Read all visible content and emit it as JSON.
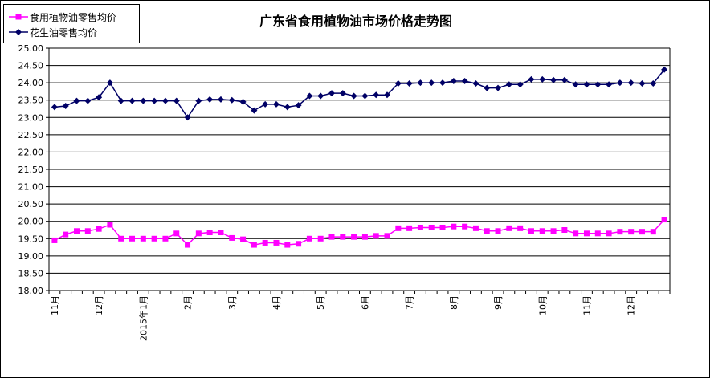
{
  "chart_data": {
    "type": "line",
    "title": "广东省食用植物油市场价格走势图",
    "xlabel": "",
    "ylabel": "",
    "ylim": [
      18.0,
      25.0
    ],
    "y_tick_step": 0.5,
    "y_ticks": [
      "18.00",
      "18.50",
      "19.00",
      "19.50",
      "20.00",
      "20.50",
      "21.00",
      "21.50",
      "22.00",
      "22.50",
      "23.00",
      "23.50",
      "24.00",
      "24.50",
      "25.00"
    ],
    "grid": true,
    "legend_position": "top-left",
    "x_labels": [
      {
        "index": 0,
        "label": "11月"
      },
      {
        "index": 4,
        "label": "12月"
      },
      {
        "index": 8,
        "label": "2015年1月"
      },
      {
        "index": 12,
        "label": "2月"
      },
      {
        "index": 16,
        "label": "3月"
      },
      {
        "index": 20,
        "label": "4月"
      },
      {
        "index": 24,
        "label": "5月"
      },
      {
        "index": 28,
        "label": "6月"
      },
      {
        "index": 32,
        "label": "7月"
      },
      {
        "index": 36,
        "label": "8月"
      },
      {
        "index": 40,
        "label": "9月"
      },
      {
        "index": 44,
        "label": "10月"
      },
      {
        "index": 48,
        "label": "11月"
      },
      {
        "index": 52,
        "label": "12月"
      }
    ],
    "series": [
      {
        "name": "食用植物油零售均价",
        "color": "#ff00ff",
        "marker": "square",
        "values": [
          19.45,
          19.62,
          19.72,
          19.72,
          19.78,
          19.9,
          19.5,
          19.5,
          19.5,
          19.5,
          19.5,
          19.65,
          19.32,
          19.65,
          19.68,
          19.68,
          19.52,
          19.48,
          19.32,
          19.38,
          19.38,
          19.32,
          19.35,
          19.5,
          19.5,
          19.55,
          19.55,
          19.55,
          19.55,
          19.58,
          19.58,
          19.8,
          19.8,
          19.82,
          19.82,
          19.82,
          19.85,
          19.85,
          19.8,
          19.72,
          19.72,
          19.8,
          19.8,
          19.72,
          19.72,
          19.72,
          19.75,
          19.65,
          19.65,
          19.65,
          19.65,
          19.7,
          19.7,
          19.7,
          19.7,
          20.05
        ]
      },
      {
        "name": "花生油零售均价",
        "color": "#000066",
        "marker": "diamond",
        "values": [
          23.3,
          23.33,
          23.48,
          23.48,
          23.58,
          24.0,
          23.48,
          23.48,
          23.48,
          23.48,
          23.48,
          23.48,
          23.0,
          23.48,
          23.52,
          23.52,
          23.5,
          23.45,
          23.2,
          23.38,
          23.38,
          23.3,
          23.35,
          23.62,
          23.62,
          23.7,
          23.7,
          23.62,
          23.62,
          23.65,
          23.65,
          23.98,
          23.98,
          24.0,
          24.0,
          24.0,
          24.05,
          24.05,
          23.98,
          23.85,
          23.85,
          23.95,
          23.95,
          24.1,
          24.1,
          24.08,
          24.08,
          23.95,
          23.95,
          23.95,
          23.95,
          24.0,
          24.0,
          23.98,
          23.98,
          24.38
        ]
      }
    ]
  }
}
